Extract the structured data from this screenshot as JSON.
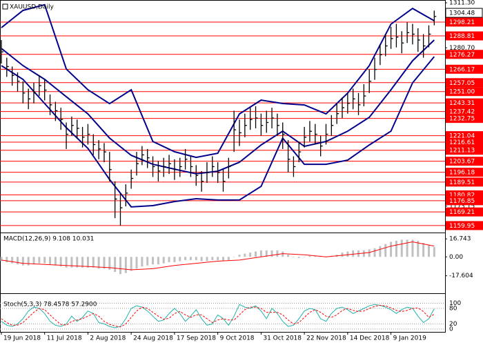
{
  "chart_data": [
    {
      "type": "ohlc",
      "title": "XAUUSD,Daily",
      "color": "#000000",
      "x": [
        0,
        2,
        4,
        6,
        8,
        10,
        12,
        14,
        16,
        18,
        20,
        22,
        24,
        26,
        28,
        30,
        32,
        34,
        36,
        38,
        40,
        42,
        44,
        46,
        48,
        50,
        52,
        54,
        56,
        58,
        60,
        62,
        64,
        66,
        68,
        70,
        72,
        74,
        76,
        78,
        80,
        82,
        84,
        86,
        88,
        90,
        92,
        94,
        96,
        98,
        100,
        102,
        104,
        106,
        108,
        110,
        112,
        114,
        116,
        118,
        120,
        122,
        124,
        126,
        128,
        130,
        132,
        134,
        136,
        138,
        140,
        142,
        144,
        146,
        148,
        150,
        152,
        154,
        156,
        158,
        160
      ],
      "high": [
        1286,
        1274,
        1268,
        1264,
        1258,
        1253,
        1257,
        1262,
        1259,
        1249,
        1244,
        1240,
        1230,
        1234,
        1232,
        1227,
        1229,
        1222,
        1218,
        1216,
        1210,
        1190,
        1182,
        1188,
        1198,
        1210,
        1214,
        1212,
        1207,
        1204,
        1206,
        1208,
        1205,
        1206,
        1212,
        1207,
        1201,
        1197,
        1203,
        1207,
        1203,
        1198,
        1206,
        1238,
        1232,
        1236,
        1240,
        1241,
        1236,
        1238,
        1240,
        1236,
        1230,
        1218,
        1207,
        1217,
        1227,
        1231,
        1229,
        1221,
        1229,
        1235,
        1243,
        1247,
        1250,
        1253,
        1250,
        1256,
        1266,
        1274,
        1283,
        1290,
        1295,
        1297,
        1292,
        1298,
        1297,
        1294,
        1290,
        1296,
        1306
      ],
      "low": [
        1270,
        1261,
        1255,
        1251,
        1243,
        1239,
        1243,
        1248,
        1245,
        1235,
        1231,
        1225,
        1212,
        1221,
        1219,
        1213,
        1215,
        1208,
        1205,
        1203,
        1190,
        1165,
        1160,
        1173,
        1185,
        1194,
        1201,
        1199,
        1193,
        1190,
        1193,
        1195,
        1191,
        1193,
        1198,
        1193,
        1187,
        1183,
        1189,
        1193,
        1189,
        1183,
        1192,
        1210,
        1214,
        1220,
        1225,
        1226,
        1221,
        1223,
        1226,
        1221,
        1212,
        1196,
        1193,
        1203,
        1213,
        1217,
        1215,
        1207,
        1215,
        1221,
        1229,
        1233,
        1236,
        1239,
        1235,
        1241,
        1250,
        1259,
        1269,
        1275,
        1280,
        1281,
        1277,
        1284,
        1283,
        1278,
        1274,
        1281,
        1296
      ],
      "close": [
        1278,
        1268,
        1262,
        1258,
        1250,
        1246,
        1250,
        1255,
        1252,
        1242,
        1238,
        1232,
        1222,
        1228,
        1226,
        1220,
        1222,
        1215,
        1212,
        1210,
        1198,
        1178,
        1172,
        1182,
        1192,
        1202,
        1208,
        1206,
        1200,
        1197,
        1200,
        1202,
        1198,
        1200,
        1205,
        1200,
        1194,
        1190,
        1196,
        1200,
        1196,
        1190,
        1200,
        1225,
        1223,
        1228,
        1232,
        1233,
        1228,
        1230,
        1233,
        1228,
        1222,
        1205,
        1200,
        1210,
        1220,
        1224,
        1222,
        1214,
        1222,
        1228,
        1236,
        1240,
        1243,
        1246,
        1242,
        1248,
        1258,
        1266,
        1276,
        1282,
        1287,
        1288,
        1284,
        1291,
        1290,
        1286,
        1282,
        1290,
        1302
      ],
      "band_x": [
        0,
        8,
        16,
        24,
        32,
        40,
        48,
        56,
        64,
        72,
        80,
        88,
        96,
        104,
        112,
        120,
        128,
        136,
        144,
        152,
        160
      ],
      "bands": [
        {
          "color": "#00008b",
          "values": [
            1294.4,
            1306.1,
            1310,
            1266.3,
            1252.2,
            1242.8,
            1252.2,
            1217.1,
            1210.1,
            1206.3,
            1209.1,
            1235.8,
            1245.2,
            1242.9,
            1241.9,
            1235.8,
            1249.9,
            1268.6,
            1296.8,
            1307.5,
            1299.1
          ]
        },
        {
          "color": "#00008b",
          "values": [
            1280.3,
            1268.6,
            1259.3,
            1247.5,
            1235.8,
            1219.4,
            1207.7,
            1201.6,
            1198.3,
            1195.1,
            1196.9,
            1203.0,
            1214.7,
            1224.1,
            1213.8,
            1217.1,
            1224.1,
            1233.5,
            1252.2,
            1271.9,
            1286.0
          ]
        },
        {
          "color": "#00008b",
          "values": [
            1268.6,
            1259.3,
            1242.9,
            1226.5,
            1212.4,
            1191.3,
            1172.6,
            1173.5,
            1176.3,
            1178.2,
            1177.3,
            1177.3,
            1186.6,
            1219.4,
            1201.6,
            1201.6,
            1204.4,
            1214.7,
            1224.1,
            1256.9,
            1274.7
          ]
        }
      ],
      "xlim": [
        -0.5,
        164
      ],
      "ylim": [
        1155.7,
        1313.2
      ],
      "yticks": [
        {
          "value": 1311.3,
          "label": "1311.30"
        },
        {
          "value": 1298.0,
          "label": "1298.00"
        },
        {
          "value": 1280.7,
          "label": "1280.70"
        },
        {
          "value": 1173.15,
          "label": "1173.15"
        }
      ],
      "level_color": "#ff0000",
      "levels": [
        {
          "value": 1298.21,
          "label": "1298.21"
        },
        {
          "value": 1288.81,
          "label": "1288.81"
        },
        {
          "value": 1276.27,
          "label": "1276.27"
        },
        {
          "value": 1266.17,
          "label": "1266.17"
        },
        {
          "value": 1257.05,
          "label": "1257.05"
        },
        {
          "value": 1251.0,
          "label": "1251.00"
        },
        {
          "value": 1243.31,
          "label": "1243.31"
        },
        {
          "value": 1237.42,
          "label": "1237.42"
        },
        {
          "value": 1232.75,
          "label": "1232.75"
        },
        {
          "value": 1221.04,
          "label": "1221.04"
        },
        {
          "value": 1216.61,
          "label": "1216.61"
        },
        {
          "value": 1211.13,
          "label": "1211.13"
        },
        {
          "value": 1203.67,
          "label": "1203.67"
        },
        {
          "value": 1196.18,
          "label": "1196.18"
        },
        {
          "value": 1189.51,
          "label": "1189.51"
        },
        {
          "value": 1180.82,
          "label": "1180.82"
        },
        {
          "value": 1176.85,
          "label": "1176.85"
        },
        {
          "value": 1169.21,
          "label": "1169.21"
        },
        {
          "value": 1159.95,
          "label": "1159.95"
        }
      ],
      "current": {
        "value": 1304.48,
        "label": "1304.48"
      }
    },
    {
      "type": "macd",
      "title": "MACD(12,26,9) 9.108 10.031",
      "color": "#c0c0c0",
      "x": [
        0,
        2,
        4,
        6,
        8,
        10,
        12,
        14,
        16,
        18,
        20,
        22,
        24,
        26,
        28,
        30,
        32,
        34,
        36,
        38,
        40,
        42,
        44,
        46,
        48,
        50,
        52,
        54,
        56,
        58,
        60,
        62,
        64,
        66,
        68,
        70,
        72,
        74,
        76,
        78,
        80,
        82,
        84,
        86,
        88,
        90,
        92,
        94,
        96,
        98,
        100,
        102,
        104,
        106,
        108,
        110,
        112,
        114,
        116,
        118,
        120,
        122,
        124,
        126,
        128,
        130,
        132,
        134,
        136,
        138,
        140,
        142,
        144,
        146,
        148,
        150,
        152,
        154,
        156,
        158,
        160
      ],
      "values": [
        -4,
        -5,
        -6,
        -7,
        -8,
        -8,
        -7,
        -6,
        -6,
        -7,
        -8,
        -9,
        -10,
        -10,
        -10,
        -10,
        -10,
        -10,
        -11,
        -11,
        -12,
        -14,
        -16,
        -15,
        -13,
        -11,
        -9,
        -8,
        -7,
        -7,
        -6,
        -5,
        -5,
        -4,
        -3,
        -3,
        -3,
        -4,
        -4,
        -3,
        -3,
        -4,
        -3,
        0,
        2,
        3,
        4,
        5,
        6,
        6,
        6,
        6,
        5,
        2,
        0,
        -1,
        0,
        1,
        1,
        1,
        0,
        1,
        2,
        4,
        5,
        6,
        6,
        6,
        7,
        8,
        10,
        12,
        14,
        15,
        16,
        16,
        16,
        15,
        13,
        11,
        9.108
      ],
      "signal": {
        "color": "#ff0000",
        "x": [
          0,
          8,
          16,
          24,
          32,
          40,
          48,
          56,
          64,
          72,
          80,
          88,
          96,
          104,
          112,
          120,
          128,
          136,
          144,
          152,
          160
        ],
        "values": [
          -3,
          -6,
          -7,
          -8,
          -9,
          -10,
          -12,
          -11,
          -8,
          -6,
          -4,
          -3,
          0,
          3,
          2,
          0,
          2,
          4,
          10,
          14,
          10.031
        ]
      },
      "xlim": [
        -0.5,
        164
      ],
      "ylim": [
        -33.2,
        22.0
      ],
      "yticks": [
        {
          "value": 16.743,
          "label": "16.743"
        },
        {
          "value": 0,
          "label": "0.00"
        },
        {
          "value": -17.604,
          "label": "-17.604"
        }
      ]
    },
    {
      "type": "stochastic",
      "title": "Stoch(5,3,3) 78.4578 57.2900",
      "x": [
        0,
        2,
        4,
        6,
        8,
        10,
        12,
        14,
        16,
        18,
        20,
        22,
        24,
        26,
        28,
        30,
        32,
        34,
        36,
        38,
        40,
        42,
        44,
        46,
        48,
        50,
        52,
        54,
        56,
        58,
        60,
        62,
        64,
        66,
        68,
        70,
        72,
        74,
        76,
        78,
        80,
        82,
        84,
        86,
        88,
        90,
        92,
        94,
        96,
        98,
        100,
        102,
        104,
        106,
        108,
        110,
        112,
        114,
        116,
        118,
        120,
        122,
        124,
        126,
        128,
        130,
        132,
        134,
        136,
        138,
        140,
        142,
        144,
        146,
        148,
        150,
        152,
        154,
        156,
        158,
        160
      ],
      "series": [
        {
          "color": "#20b2aa",
          "values": [
            30,
            15,
            10,
            20,
            40,
            70,
            85,
            80,
            60,
            30,
            15,
            10,
            20,
            50,
            30,
            45,
            70,
            60,
            25,
            20,
            10,
            5,
            10,
            40,
            80,
            90,
            85,
            70,
            50,
            30,
            35,
            60,
            80,
            60,
            30,
            50,
            75,
            40,
            15,
            20,
            55,
            40,
            15,
            50,
            95,
            85,
            80,
            90,
            70,
            40,
            80,
            60,
            30,
            10,
            15,
            40,
            70,
            80,
            75,
            40,
            30,
            60,
            80,
            85,
            75,
            60,
            70,
            80,
            90,
            95,
            92,
            85,
            75,
            60,
            75,
            85,
            80,
            50,
            25,
            40,
            78.4578
          ]
        },
        {
          "color": "#ff0000",
          "values": [
            40,
            25,
            15,
            15,
            25,
            45,
            65,
            80,
            75,
            55,
            35,
            18,
            15,
            30,
            35,
            40,
            50,
            60,
            50,
            30,
            18,
            12,
            8,
            20,
            45,
            70,
            85,
            80,
            65,
            50,
            38,
            42,
            60,
            68,
            55,
            45,
            55,
            55,
            40,
            25,
            35,
            40,
            35,
            35,
            55,
            75,
            85,
            85,
            80,
            65,
            65,
            65,
            55,
            35,
            20,
            25,
            45,
            65,
            75,
            65,
            50,
            45,
            55,
            72,
            80,
            72,
            68,
            70,
            80,
            88,
            92,
            90,
            82,
            72,
            68,
            72,
            80,
            82,
            68,
            45,
            57.29
          ]
        }
      ],
      "xlim": [
        -0.5,
        164
      ],
      "ylim": [
        -11,
        136
      ],
      "yticks": [
        100,
        80,
        20,
        0
      ],
      "xticks": [
        {
          "value": 0,
          "label": "19 Jun 2018"
        },
        {
          "value": 16,
          "label": "11 Jul 2018"
        },
        {
          "value": 32,
          "label": "2 Aug 2018"
        },
        {
          "value": 48,
          "label": "24 Aug 2018"
        },
        {
          "value": 64,
          "label": "17 Sep 2018"
        },
        {
          "value": 80,
          "label": "9 Oct 2018"
        },
        {
          "value": 96,
          "label": "31 Oct 2018"
        },
        {
          "value": 112,
          "label": "22 Nov 2018"
        },
        {
          "value": 128,
          "label": "14 Dec 2018"
        },
        {
          "value": 144,
          "label": "9 Jan 2019"
        }
      ]
    }
  ]
}
